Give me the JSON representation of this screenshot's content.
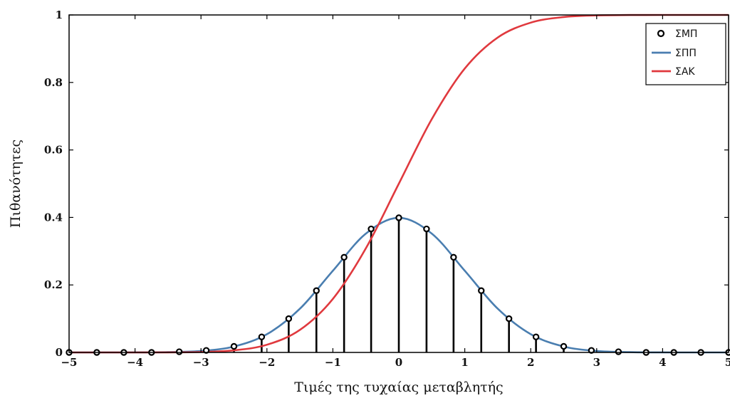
{
  "chart_data": {
    "type": "line",
    "xlabel": "Τιμές της τυχαίας μεταβλητής",
    "ylabel": "Πιθανότητες",
    "xlim": [
      -5,
      5
    ],
    "ylim": [
      0,
      1
    ],
    "xticks": [
      "−5",
      "−4",
      "−3",
      "−2",
      "−1",
      "0",
      "1",
      "2",
      "3",
      "4",
      "5"
    ],
    "yticks": [
      "0",
      "0.2",
      "0.4",
      "0.6",
      "0.8",
      "1"
    ],
    "grid": false,
    "legend_position": "top-right",
    "series": [
      {
        "name": "ΣΜΠ",
        "type": "stem",
        "color": "#000000",
        "x": [
          -5.0,
          -4.58,
          -4.17,
          -3.75,
          -3.33,
          -2.92,
          -2.5,
          -2.08,
          -1.67,
          -1.25,
          -0.83,
          -0.42,
          0.0,
          0.42,
          0.83,
          1.25,
          1.67,
          2.08,
          2.5,
          2.92,
          3.33,
          3.75,
          4.17,
          4.58,
          5.0
        ],
        "y": [
          0.0,
          0.0,
          0.0,
          0.0,
          0.002,
          0.006,
          0.018,
          0.046,
          0.1,
          0.183,
          0.282,
          0.366,
          0.399,
          0.366,
          0.282,
          0.183,
          0.1,
          0.046,
          0.018,
          0.006,
          0.002,
          0.0,
          0.0,
          0.0,
          0.0
        ]
      },
      {
        "name": "ΣΠΠ",
        "type": "line",
        "color": "#4a7eb0",
        "x": [
          -5,
          -4.5,
          -4,
          -3.5,
          -3,
          -2.5,
          -2,
          -1.5,
          -1,
          -0.5,
          0,
          0.5,
          1,
          1.5,
          2,
          2.5,
          3,
          3.5,
          4,
          4.5,
          5
        ],
        "y": [
          0.0,
          0.0,
          0.0001,
          0.0009,
          0.0044,
          0.0175,
          0.054,
          0.1295,
          0.242,
          0.3521,
          0.3989,
          0.3521,
          0.242,
          0.1295,
          0.054,
          0.0175,
          0.0044,
          0.0009,
          0.0001,
          0.0,
          0.0
        ]
      },
      {
        "name": "ΣΑΚ",
        "type": "line",
        "color": "#e0393e",
        "x": [
          -5,
          -4.5,
          -4,
          -3.5,
          -3,
          -2.5,
          -2,
          -1.5,
          -1,
          -0.5,
          0,
          0.5,
          1,
          1.5,
          2,
          2.5,
          3,
          3.5,
          4,
          4.5,
          5
        ],
        "y": [
          0.0,
          0.0,
          0.0,
          0.0002,
          0.0013,
          0.0062,
          0.0228,
          0.0668,
          0.1587,
          0.3085,
          0.5,
          0.6915,
          0.8413,
          0.9332,
          0.9772,
          0.9938,
          0.9987,
          0.9998,
          1.0,
          1.0,
          1.0
        ]
      }
    ]
  }
}
